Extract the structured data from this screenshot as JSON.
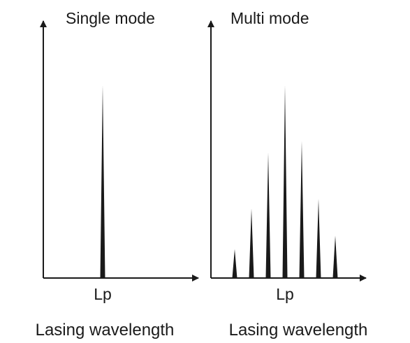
{
  "panels": [
    {
      "title": "Single mode",
      "tick_label": "Lp",
      "caption": "Lasing wavelength",
      "peaks": [
        1.0
      ]
    },
    {
      "title": "Multi mode",
      "tick_label": "Lp",
      "caption": "Lasing wavelength",
      "peaks": [
        0.15,
        0.36,
        0.65,
        1.0,
        0.71,
        0.41,
        0.22
      ]
    }
  ],
  "colors": {
    "line": "#1a1a1a",
    "background": "#ffffff"
  }
}
